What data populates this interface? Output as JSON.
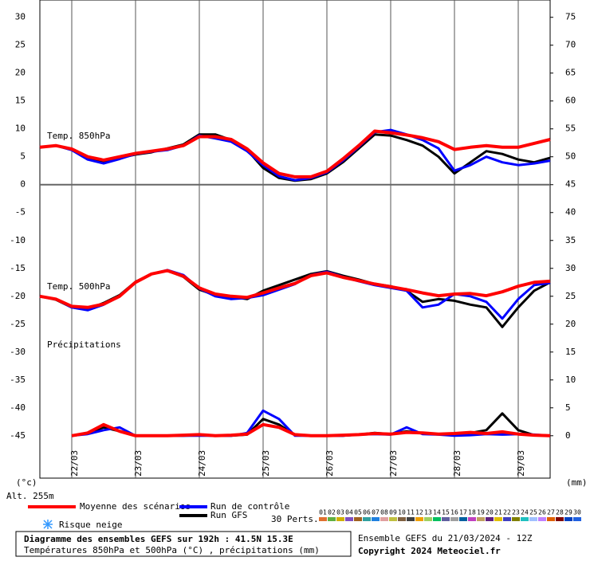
{
  "chart_data": {
    "type": "line",
    "title": "Diagramme des ensembles GEFS sur 192h : 41.5N 15.3E",
    "subtitle": "Températures 850hPa et 500hPa (°C) , précipitations (mm)",
    "run": "Ensemble GEFS du 21/03/2024 - 12Z",
    "copyright": "Copyright 2024 Meteociel.fr",
    "y_label": "(°c)",
    "y2_label": "(mm)",
    "altitude": "Alt. 255m",
    "snow": "Risque neige",
    "perts_label": "30 Perts.",
    "panels": {
      "t850": "Temp. 850hPa",
      "t500": "Temp. 500hPa",
      "precip": "Précipitations"
    },
    "xlim": [
      0,
      192
    ],
    "xticks": [
      {
        "value": 12,
        "label": "22/03"
      },
      {
        "value": 36,
        "label": "23/03"
      },
      {
        "value": 60,
        "label": "24/03"
      },
      {
        "value": 84,
        "label": "25/03"
      },
      {
        "value": 108,
        "label": "26/03"
      },
      {
        "value": 132,
        "label": "27/03"
      },
      {
        "value": 156,
        "label": "28/03"
      },
      {
        "value": 180,
        "label": "29/03"
      }
    ],
    "ylim": [
      -52.6,
      33.1
    ],
    "yticks": [
      30,
      25,
      20,
      15,
      10,
      5,
      0,
      -5,
      -10,
      -15,
      -20,
      -25,
      -30,
      -35,
      -40,
      -45
    ],
    "y2lim": [
      -7.6,
      78.1
    ],
    "y2ticks": [
      75,
      70,
      65,
      60,
      55,
      50,
      45,
      40,
      35,
      30,
      25,
      20,
      15,
      10,
      5,
      0
    ],
    "grid": true,
    "x": [
      0,
      6,
      12,
      18,
      24,
      30,
      36,
      42,
      48,
      54,
      60,
      66,
      72,
      78,
      84,
      90,
      96,
      102,
      108,
      114,
      120,
      126,
      132,
      138,
      144,
      150,
      156,
      162,
      168,
      174,
      180,
      186,
      192
    ],
    "series": [
      {
        "name": "Run GFS",
        "color": "#000000",
        "t850": [
          6.7,
          7,
          6.3,
          4.6,
          4,
          4.8,
          5.4,
          5.8,
          6.5,
          7.2,
          9,
          9,
          8,
          6.2,
          3,
          1.2,
          0.7,
          1,
          2,
          4,
          6.5,
          9,
          8.8,
          8,
          7,
          5,
          2,
          4,
          6,
          5.5,
          4.5,
          4,
          4.8
        ],
        "t500": [
          -20,
          -20.6,
          -22,
          -22.3,
          -21.2,
          -19.8,
          -17.4,
          -16,
          -15.4,
          -16.5,
          -18.8,
          -19.8,
          -20.1,
          -20.5,
          -19,
          -18,
          -17,
          -16,
          -15.5,
          -16.3,
          -17,
          -17.8,
          -18.2,
          -19,
          -21,
          -20.5,
          -20.8,
          -21.5,
          -22,
          -25.5,
          -22,
          -19,
          -17.5
        ],
        "precip": [
          null,
          null,
          0,
          0.5,
          1.5,
          0.8,
          0,
          0,
          0,
          0,
          0.1,
          0,
          0,
          0.2,
          3,
          2,
          0.1,
          0,
          0,
          0,
          0.2,
          0.5,
          0.3,
          0.8,
          0.5,
          0.3,
          0.2,
          0.5,
          1,
          4,
          1,
          0.1,
          0
        ]
      },
      {
        "name": "Run de contrôle",
        "color": "#0000ff",
        "t850": [
          6.7,
          7,
          6.2,
          4.5,
          3.8,
          4.6,
          5.5,
          5.9,
          6.2,
          7,
          8.8,
          8.3,
          7.7,
          6,
          3.5,
          1.5,
          0.8,
          1.2,
          2.2,
          4.3,
          6.8,
          9.4,
          9.8,
          9,
          8,
          6.5,
          2.5,
          3.5,
          5,
          4,
          3.5,
          3.8,
          4.3
        ],
        "t500": [
          -20,
          -20.5,
          -22,
          -22.5,
          -21.5,
          -20,
          -17.5,
          -16,
          -15.3,
          -16.2,
          -18.6,
          -20,
          -20.5,
          -20.3,
          -19.8,
          -18.8,
          -17.8,
          -16.2,
          -15.6,
          -16.5,
          -17.3,
          -18,
          -18.5,
          -19,
          -22,
          -21.5,
          -19.6,
          -20,
          -21,
          -24,
          -20.5,
          -18,
          -17.6
        ],
        "precip": [
          null,
          null,
          0,
          0.3,
          1,
          1.5,
          0,
          0,
          0,
          0,
          0,
          0,
          0,
          0.5,
          4.5,
          3,
          0,
          0,
          0,
          0,
          0.2,
          0.3,
          0.2,
          1.5,
          0.3,
          0.2,
          0,
          0.1,
          0.3,
          0.2,
          0.3,
          0.2,
          0
        ]
      },
      {
        "name": "Moyenne des scénarios",
        "color": "#ff0000",
        "t850": [
          6.7,
          7,
          6.4,
          5,
          4.4,
          5,
          5.6,
          6,
          6.4,
          7,
          8.6,
          8.6,
          8.1,
          6.4,
          3.9,
          2,
          1.4,
          1.4,
          2.4,
          4.6,
          7,
          9.6,
          9.3,
          8.9,
          8.4,
          7.7,
          6.3,
          6.7,
          7,
          6.7,
          6.7,
          7.4,
          8.1
        ],
        "t500": [
          -20,
          -20.5,
          -21.8,
          -22,
          -21.4,
          -20,
          -17.5,
          -16,
          -15.4,
          -16.4,
          -18.5,
          -19.6,
          -20,
          -20.2,
          -19.4,
          -18.5,
          -17.7,
          -16.3,
          -15.8,
          -16.6,
          -17.2,
          -17.8,
          -18.3,
          -18.8,
          -19.4,
          -19.9,
          -19.6,
          -19.5,
          -19.9,
          -19.2,
          -18.2,
          -17.5,
          -17.3
        ],
        "precip": [
          null,
          null,
          0,
          0.5,
          2,
          0.8,
          0,
          0,
          0,
          0.1,
          0.2,
          0,
          0.1,
          0.3,
          2,
          1.5,
          0.2,
          0,
          0,
          0.1,
          0.2,
          0.4,
          0.3,
          0.6,
          0.5,
          0.3,
          0.4,
          0.6,
          0.4,
          0.7,
          0.3,
          0.1,
          0
        ]
      }
    ],
    "perturbations": [
      {
        "name": "01",
        "color": "#e07030"
      },
      {
        "name": "02",
        "color": "#60b040"
      },
      {
        "name": "03",
        "color": "#d0b000"
      },
      {
        "name": "04",
        "color": "#8050c0"
      },
      {
        "name": "05",
        "color": "#a06020"
      },
      {
        "name": "06",
        "color": "#30a0a0"
      },
      {
        "name": "07",
        "color": "#2080e0"
      },
      {
        "name": "08",
        "color": "#e0a0a0"
      },
      {
        "name": "09",
        "color": "#c0c040"
      },
      {
        "name": "10",
        "color": "#806040"
      },
      {
        "name": "11",
        "color": "#404040"
      },
      {
        "name": "12",
        "color": "#f0a000"
      },
      {
        "name": "13",
        "color": "#a0d060"
      },
      {
        "name": "14",
        "color": "#00c060"
      },
      {
        "name": "15",
        "color": "#6060a0"
      },
      {
        "name": "16",
        "color": "#a0a0a0"
      },
      {
        "name": "17",
        "color": "#0060a0"
      },
      {
        "name": "18",
        "color": "#c040c0"
      },
      {
        "name": "19",
        "color": "#c0a060"
      },
      {
        "name": "20",
        "color": "#602080"
      },
      {
        "name": "21",
        "color": "#e0c000"
      },
      {
        "name": "22",
        "color": "#4040c0"
      },
      {
        "name": "23",
        "color": "#808000"
      },
      {
        "name": "24",
        "color": "#20c0c0"
      },
      {
        "name": "25",
        "color": "#a0c0ff"
      },
      {
        "name": "26",
        "color": "#c080ff"
      },
      {
        "name": "27",
        "color": "#e06000"
      },
      {
        "name": "28",
        "color": "#800000"
      },
      {
        "name": "29",
        "color": "#0040c0"
      },
      {
        "name": "30",
        "color": "#2060e0"
      }
    ]
  }
}
